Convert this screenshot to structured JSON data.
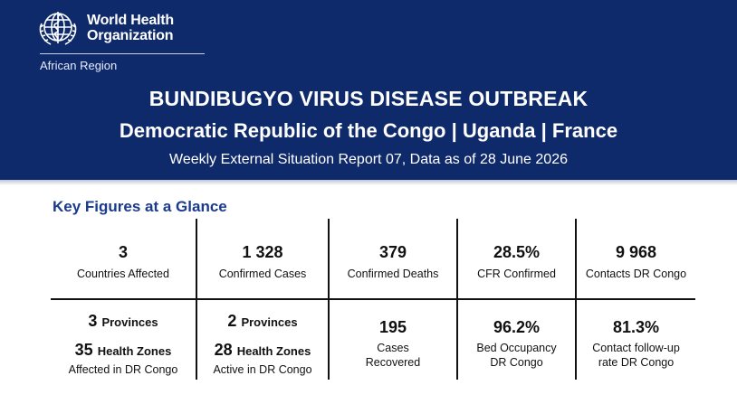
{
  "header": {
    "org_line1": "World Health",
    "org_line2": "Organization",
    "region": "African Region",
    "logo_icon": "who-emblem-icon",
    "title": "BUNDIBUGYO VIRUS DISEASE OUTBREAK",
    "subtitle": "Democratic Republic of the Congo | Uganda | France",
    "report_line": "Weekly External Situation Report 07, Data as of 28 June 2026"
  },
  "section": {
    "heading": "Key Figures at a Glance"
  },
  "key_figures_row1": [
    {
      "value": "3",
      "label": "Countries Affected"
    },
    {
      "value": "1 328",
      "label": "Confirmed Cases"
    },
    {
      "value": "379",
      "label": "Confirmed Deaths"
    },
    {
      "value": "28.5%",
      "label": "CFR Confirmed"
    },
    {
      "value": "9 968",
      "label": "Contacts DR Congo"
    }
  ],
  "key_figures_row2": {
    "provinces_affected": {
      "number": "3",
      "unit": "Provinces"
    },
    "zones_affected": {
      "number": "35",
      "unit": "Health Zones",
      "label": "Affected in DR Congo"
    },
    "provinces_active": {
      "number": "2",
      "unit": "Provinces"
    },
    "zones_active": {
      "number": "28",
      "unit": "Health Zones",
      "label": "Active in DR Congo"
    },
    "recovered": {
      "value": "195",
      "label1": "Cases",
      "label2": "Recovered"
    },
    "bed_occupancy": {
      "value": "96.2%",
      "label1": "Bed Occupancy",
      "label2": "DR Congo"
    },
    "contact_followup": {
      "value": "81.3%",
      "label1": "Contact follow-up",
      "label2": "rate DR Congo"
    }
  },
  "colors": {
    "banner": "#0f2a6b",
    "heading": "#1a3a8c"
  }
}
